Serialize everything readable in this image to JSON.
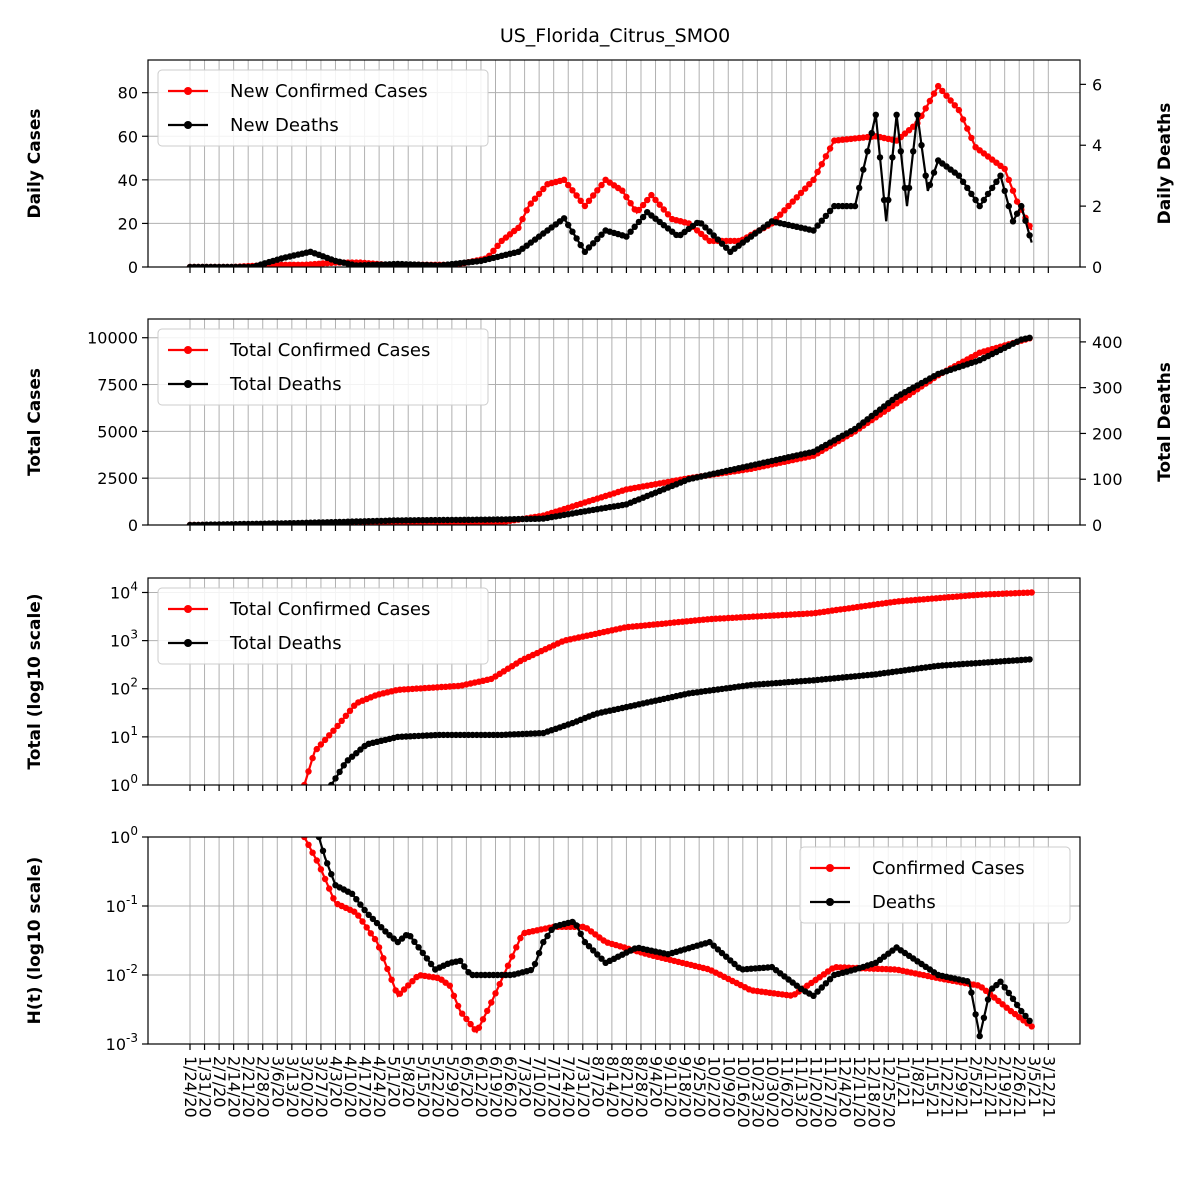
{
  "chart_data": [
    {
      "type": "line",
      "title": "US_Florida_Citrus_SMO0",
      "ylabel": "Daily Cases",
      "y2label": "Daily Deaths",
      "ylim": [
        0,
        95
      ],
      "y2lim": [
        0,
        6.8
      ],
      "yticks": [
        0,
        20,
        40,
        60,
        80
      ],
      "y2ticks": [
        0,
        2,
        4,
        6
      ],
      "legend_position": "top-left",
      "series": [
        {
          "name": "New Confirmed Cases",
          "axis": "left",
          "color": "#ff0000",
          "x": [
            0,
            20,
            40,
            55,
            70,
            82,
            95,
            110,
            128,
            143,
            150,
            158,
            163,
            172,
            180,
            190,
            200,
            208,
            215,
            222,
            232,
            240,
            250,
            265,
            280,
            300,
            310,
            330,
            340,
            350,
            360,
            370,
            378,
            385,
            392,
            398,
            405
          ],
          "values": [
            0,
            0,
            1,
            1,
            2,
            2,
            1,
            1,
            1,
            4,
            12,
            18,
            28,
            38,
            40,
            28,
            40,
            35,
            25,
            33,
            22,
            20,
            12,
            12,
            20,
            40,
            58,
            60,
            58,
            66,
            83,
            72,
            55,
            50,
            45,
            30,
            17
          ]
        },
        {
          "name": "New Deaths",
          "axis": "right",
          "color": "#000000",
          "x": [
            0,
            30,
            45,
            58,
            70,
            80,
            100,
            120,
            140,
            158,
            170,
            180,
            190,
            200,
            210,
            220,
            235,
            245,
            260,
            270,
            280,
            300,
            310,
            320,
            330,
            335,
            340,
            345,
            350,
            355,
            360,
            370,
            380,
            390,
            396,
            400,
            405
          ],
          "values": [
            0,
            0,
            0.3,
            0.5,
            0.2,
            0.05,
            0.1,
            0.05,
            0.2,
            0.5,
            1.1,
            1.6,
            0.5,
            1.2,
            1.0,
            1.8,
            1.0,
            1.5,
            0.5,
            1.0,
            1.5,
            1.2,
            2.0,
            2.0,
            5.0,
            1.5,
            5.0,
            2.0,
            5.0,
            2.5,
            3.5,
            3.0,
            2.0,
            3.0,
            1.5,
            2.0,
            0.8
          ]
        }
      ]
    },
    {
      "type": "line",
      "ylabel": "Total Cases",
      "y2label": "Total Deaths",
      "ylim": [
        0,
        11000
      ],
      "y2lim": [
        0,
        450
      ],
      "yticks": [
        0,
        2500,
        5000,
        7500,
        10000
      ],
      "y2ticks": [
        0,
        100,
        200,
        300,
        400
      ],
      "legend_position": "top-left",
      "series": [
        {
          "name": "Total Confirmed Cases",
          "axis": "left",
          "color": "#ff0000",
          "x": [
            0,
            50,
            100,
            150,
            170,
            190,
            210,
            240,
            270,
            300,
            320,
            340,
            360,
            380,
            405
          ],
          "values": [
            0,
            30,
            100,
            150,
            500,
            1200,
            1900,
            2500,
            3000,
            3700,
            5000,
            6500,
            8000,
            9200,
            10000
          ]
        },
        {
          "name": "Total Deaths",
          "axis": "right",
          "color": "#000000",
          "x": [
            0,
            50,
            100,
            150,
            170,
            190,
            210,
            240,
            270,
            300,
            320,
            340,
            360,
            380,
            400,
            405
          ],
          "values": [
            0,
            4,
            10,
            12,
            14,
            30,
            45,
            100,
            130,
            160,
            210,
            280,
            330,
            360,
            405,
            410
          ]
        }
      ]
    },
    {
      "type": "line",
      "ylabel": "Total (log10 scale)",
      "yscale": "log",
      "ylim": [
        1,
        20000
      ],
      "yticks": [
        1,
        10,
        100,
        1000,
        10000
      ],
      "ytick_labels": [
        "10^0",
        "10^1",
        "10^2",
        "10^3",
        "10^4"
      ],
      "legend_position": "top-left",
      "series": [
        {
          "name": "Total Confirmed Cases",
          "color": "#ff0000",
          "x": [
            55,
            60,
            70,
            80,
            90,
            100,
            130,
            145,
            160,
            180,
            210,
            250,
            300,
            340,
            380,
            405
          ],
          "values": [
            1,
            5,
            15,
            50,
            75,
            95,
            115,
            160,
            400,
            1000,
            1900,
            2800,
            3700,
            6500,
            9000,
            10000
          ]
        },
        {
          "name": "Total Deaths",
          "color": "#000000",
          "x": [
            68,
            75,
            85,
            100,
            120,
            150,
            170,
            185,
            195,
            240,
            270,
            300,
            330,
            360,
            405
          ],
          "values": [
            1,
            3,
            7,
            10,
            11,
            11,
            12,
            20,
            30,
            80,
            120,
            150,
            200,
            300,
            410
          ]
        }
      ]
    },
    {
      "type": "line",
      "ylabel": "H(t) (log10 scale)",
      "yscale": "log",
      "ylim": [
        0.001,
        1
      ],
      "yticks": [
        0.001,
        0.01,
        0.1,
        1
      ],
      "ytick_labels": [
        "10^-3",
        "10^-2",
        "10^-1",
        "10^0"
      ],
      "legend_position": "top-right",
      "series": [
        {
          "name": "Confirmed Cases",
          "color": "#ff0000",
          "x": [
            55,
            62,
            70,
            80,
            90,
            100,
            110,
            120,
            125,
            130,
            138,
            145,
            160,
            175,
            190,
            200,
            220,
            250,
            270,
            290,
            310,
            340,
            360,
            380,
            395,
            405
          ],
          "values": [
            1.0,
            0.4,
            0.11,
            0.08,
            0.03,
            0.005,
            0.01,
            0.009,
            0.007,
            0.003,
            0.0015,
            0.004,
            0.04,
            0.05,
            0.05,
            0.03,
            0.02,
            0.012,
            0.006,
            0.005,
            0.013,
            0.012,
            0.009,
            0.007,
            0.003,
            0.0018
          ]
        },
        {
          "name": "Deaths",
          "color": "#000000",
          "x": [
            62,
            65,
            70,
            78,
            85,
            95,
            100,
            105,
            118,
            125,
            130,
            135,
            155,
            165,
            170,
            175,
            185,
            190,
            200,
            215,
            230,
            250,
            265,
            280,
            295,
            300,
            310,
            320,
            330,
            340,
            360,
            375,
            380,
            385,
            390,
            395,
            400,
            405
          ],
          "values": [
            1.0,
            0.5,
            0.2,
            0.15,
            0.08,
            0.04,
            0.03,
            0.04,
            0.012,
            0.015,
            0.016,
            0.01,
            0.01,
            0.012,
            0.03,
            0.05,
            0.06,
            0.03,
            0.015,
            0.025,
            0.02,
            0.03,
            0.012,
            0.013,
            0.006,
            0.005,
            0.01,
            0.012,
            0.015,
            0.025,
            0.01,
            0.008,
            0.0013,
            0.006,
            0.008,
            0.005,
            0.003,
            0.002
          ]
        }
      ]
    }
  ],
  "x_ticks": {
    "start_label": "1/24/20",
    "count": 60,
    "step_days": 7,
    "total_days": 409,
    "labels": [
      "1/24/20",
      "1/31/20",
      "2/7/20",
      "2/14/20",
      "2/21/20",
      "2/28/20",
      "3/6/20",
      "3/13/20",
      "3/20/20",
      "3/27/20",
      "4/3/20",
      "4/10/20",
      "4/17/20",
      "4/24/20",
      "5/1/20",
      "5/8/20",
      "5/15/20",
      "5/22/20",
      "5/29/20",
      "6/5/20",
      "6/12/20",
      "6/19/20",
      "6/26/20",
      "7/3/20",
      "7/10/20",
      "7/17/20",
      "7/24/20",
      "7/31/20",
      "8/7/20",
      "8/14/20",
      "8/21/20",
      "8/28/20",
      "9/4/20",
      "9/11/20",
      "9/18/20",
      "9/25/20",
      "10/2/20",
      "10/9/20",
      "10/16/20",
      "10/23/20",
      "10/30/20",
      "11/6/20",
      "11/13/20",
      "11/20/20",
      "11/27/20",
      "12/4/20",
      "12/11/20",
      "12/18/20",
      "12/25/20",
      "1/1/21",
      "1/8/21",
      "1/15/21",
      "1/22/21",
      "1/29/21",
      "2/5/21",
      "2/12/21",
      "2/19/21",
      "2/26/21",
      "3/5/21",
      "3/12/21"
    ]
  }
}
